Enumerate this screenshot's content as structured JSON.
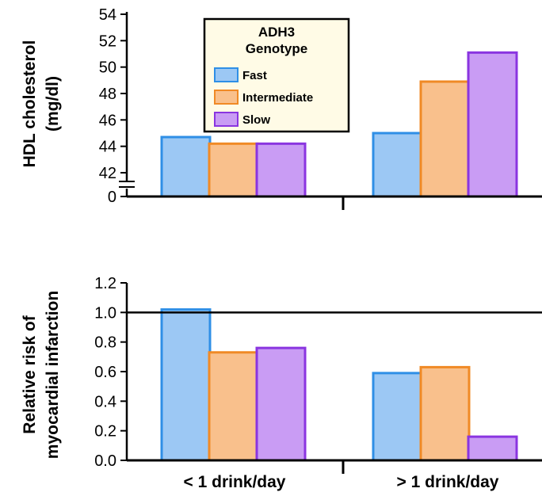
{
  "chart_data": [
    {
      "type": "bar",
      "ylabel_lines": [
        "HDL cholesterol",
        "(mg/dl)"
      ],
      "categories": [
        "< 1 drink/day",
        "> 1 drink/day"
      ],
      "series": [
        {
          "name": "Fast",
          "values": [
            44.7,
            45.0
          ]
        },
        {
          "name": "Intermediate",
          "values": [
            44.2,
            48.9
          ]
        },
        {
          "name": "Slow",
          "values": [
            44.2,
            51.1
          ]
        }
      ],
      "yticks": [
        "54",
        "52",
        "50",
        "48",
        "46",
        "44",
        "42",
        "0"
      ],
      "ylim": [
        42,
        54
      ],
      "axis_break": true,
      "grid": false,
      "legend": {
        "title_lines": [
          "ADH3",
          "Genotype"
        ],
        "entries": [
          "Fast",
          "Intermediate",
          "Slow"
        ],
        "placement": "top-left"
      }
    },
    {
      "type": "bar",
      "ylabel_lines": [
        "Relative risk of",
        "myocardial infarction"
      ],
      "categories": [
        "< 1 drink/day",
        "> 1 drink/day"
      ],
      "series": [
        {
          "name": "Fast",
          "values": [
            1.02,
            0.59
          ]
        },
        {
          "name": "Intermediate",
          "values": [
            0.73,
            0.63
          ]
        },
        {
          "name": "Slow",
          "values": [
            0.76,
            0.16
          ]
        }
      ],
      "yticks": [
        "1.2",
        "1.0",
        "0.8",
        "0.6",
        "0.4",
        "0.2",
        "0.0"
      ],
      "ylim": [
        0,
        1.2
      ],
      "reference_line": 1.0,
      "grid": false
    }
  ],
  "colors": {
    "fast_fill": "#9cc8f4",
    "fast_edge": "#2f8fe6",
    "intermediate_fill": "#f9c08c",
    "intermediate_edge": "#f08a26",
    "slow_fill": "#c99cf4",
    "slow_edge": "#8a35e0",
    "legend_bg": "#fffbe6"
  }
}
